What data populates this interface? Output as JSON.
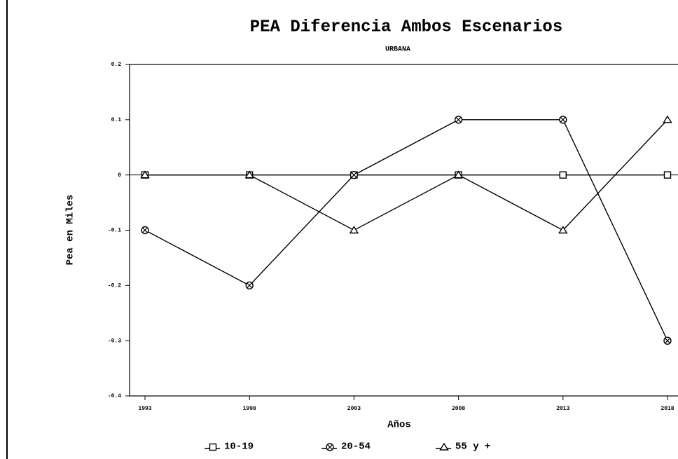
{
  "chart_data": {
    "type": "line",
    "title": "PEA Diferencia Ambos Escenarios",
    "subtitle": "URBANA",
    "x_label": "Años",
    "y_label": "Pea en Miles",
    "categories": [
      "1993",
      "1998",
      "2003",
      "2008",
      "2013",
      "2018"
    ],
    "series": [
      {
        "name": "10-19",
        "color": "#000000",
        "marker": "square",
        "values": [
          0,
          0,
          0,
          0,
          0,
          0
        ]
      },
      {
        "name": "20-54",
        "color": "#000000",
        "marker": "circle",
        "values": [
          -0.1,
          -0.2,
          0,
          0.1,
          0.1,
          -0.3
        ]
      },
      {
        "name": "55 y +",
        "color": "#000000",
        "marker": "triangle",
        "values": [
          0,
          0,
          -0.1,
          0,
          -0.1,
          0.1
        ]
      }
    ],
    "ylim": [
      -0.4,
      0.2
    ],
    "yticks": [
      0.2,
      0.1,
      0,
      -0.1,
      -0.2,
      -0.3,
      -0.4
    ],
    "legend": "bottom"
  }
}
